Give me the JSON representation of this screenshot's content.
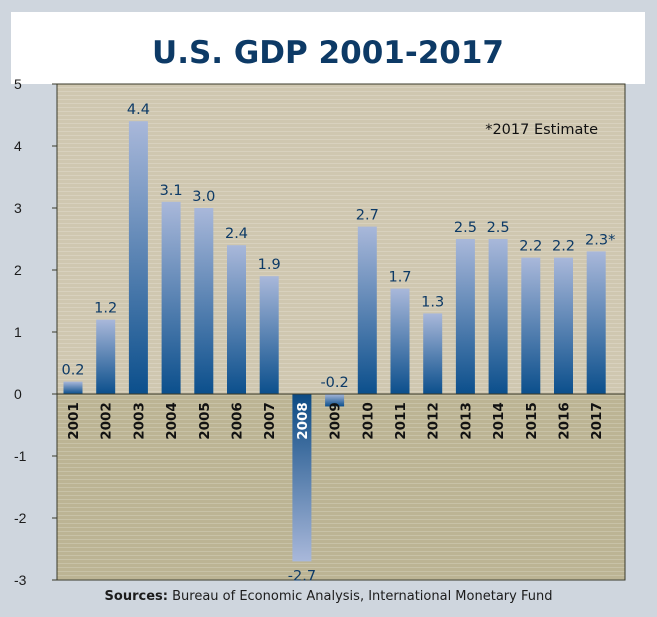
{
  "chart_data": {
    "type": "bar",
    "title": "U.S. GDP 2001-2017",
    "annotation": "*2017 Estimate",
    "categories": [
      "2001",
      "2002",
      "2003",
      "2004",
      "2005",
      "2006",
      "2007",
      "2008",
      "2009",
      "2010",
      "2011",
      "2012",
      "2013",
      "2014",
      "2015",
      "2016",
      "2017"
    ],
    "values": [
      0.2,
      1.2,
      4.4,
      3.1,
      3.0,
      2.4,
      1.9,
      -2.7,
      -0.2,
      2.7,
      1.7,
      1.3,
      2.5,
      2.5,
      2.2,
      2.2,
      2.3
    ],
    "value_labels": [
      "0.2",
      "1.2",
      "4.4",
      "3.1",
      "3.0",
      "2.4",
      "1.9",
      "-2.7",
      "-0.2",
      "2.7",
      "1.7",
      "1.3",
      "2.5",
      "2.5",
      "2.2",
      "2.2",
      "2.3*"
    ],
    "highlighted_category": "2008",
    "ylim": [
      -3,
      5
    ],
    "yticks": [
      -3,
      -2,
      -1,
      0,
      1,
      2,
      3,
      4,
      5
    ],
    "ytick_labels": [
      "-3",
      "-2",
      "-1",
      "0",
      "1",
      "2",
      "3",
      "4",
      "5"
    ],
    "grid": true,
    "xlabel": "",
    "ylabel": "",
    "colors": {
      "bar_top": "#a9b8da",
      "bar_bottom": "#0b4f8c",
      "bar_highlight_top": "#0c4a83",
      "bar_highlight_bottom": "#a9b8da",
      "plot_above_zero": "#cfc7b0",
      "plot_below_zero": "#bcb494",
      "title_color": "#0d3a66",
      "label_color": "#0d3a66"
    }
  },
  "sources": {
    "label": "Sources:",
    "text": " Bureau of Economic Analysis, International Monetary Fund"
  }
}
